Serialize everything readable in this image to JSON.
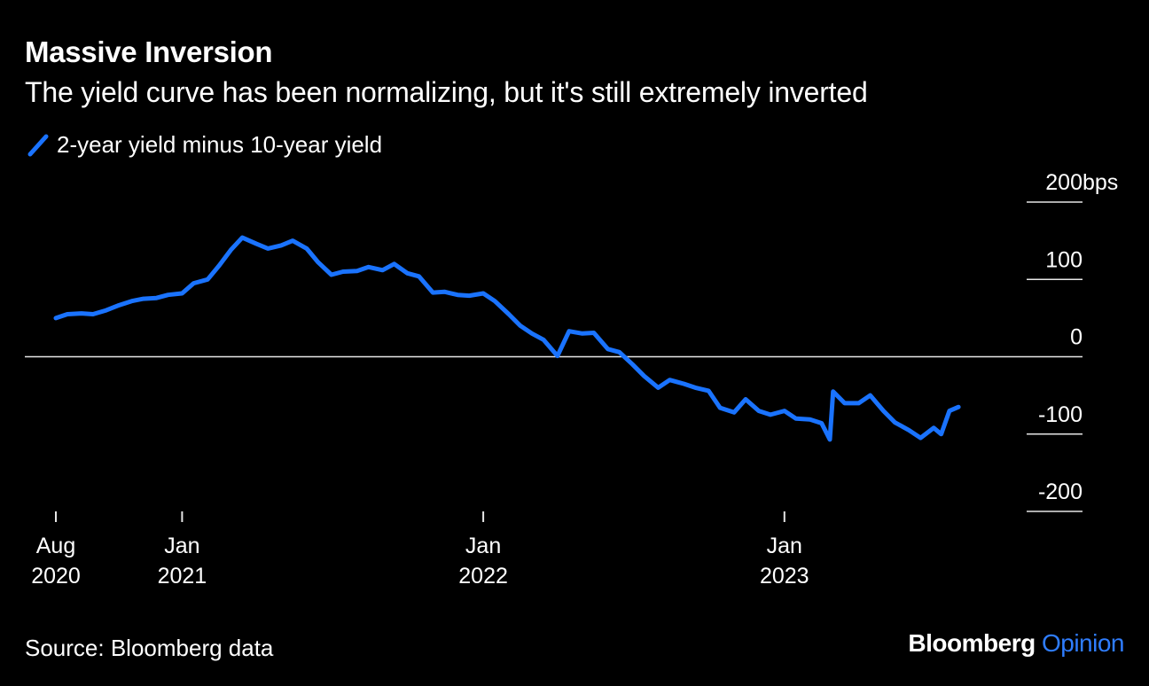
{
  "chart_data": {
    "type": "line",
    "title": "Massive Inversion",
    "subtitle": "The yield curve has been normalizing, but it's still extremely inverted",
    "source": "Source: Bloomberg data",
    "brand": {
      "name": "Bloomberg",
      "suffix": "Opinion"
    },
    "ylim": [
      -200,
      200
    ],
    "yticks": [
      {
        "value": 200,
        "label": "200",
        "unit": "bps"
      },
      {
        "value": 100,
        "label": "100"
      },
      {
        "value": 0,
        "label": "0"
      },
      {
        "value": -100,
        "label": "-100"
      },
      {
        "value": -200,
        "label": "-200"
      }
    ],
    "xlim": [
      "2020-08-01",
      "2023-08-31"
    ],
    "xticks": [
      {
        "date": "2020-08-01",
        "line1": "Aug",
        "line2": "2020"
      },
      {
        "date": "2021-01-01",
        "line1": "Jan",
        "line2": "2021"
      },
      {
        "date": "2022-01-01",
        "line1": "Jan",
        "line2": "2022"
      },
      {
        "date": "2023-01-01",
        "line1": "Jan",
        "line2": "2023"
      }
    ],
    "series": [
      {
        "name": "2-year yield minus 10-year yield",
        "color": "#1a73ff",
        "points": [
          [
            "2020-08-01",
            50
          ],
          [
            "2020-08-15",
            55
          ],
          [
            "2020-09-01",
            56
          ],
          [
            "2020-09-15",
            55
          ],
          [
            "2020-10-01",
            60
          ],
          [
            "2020-10-15",
            66
          ],
          [
            "2020-11-01",
            72
          ],
          [
            "2020-11-15",
            75
          ],
          [
            "2020-12-01",
            76
          ],
          [
            "2020-12-15",
            80
          ],
          [
            "2021-01-01",
            82
          ],
          [
            "2021-01-15",
            95
          ],
          [
            "2021-02-01",
            100
          ],
          [
            "2021-02-15",
            118
          ],
          [
            "2021-03-01",
            138
          ],
          [
            "2021-03-15",
            154
          ],
          [
            "2021-04-01",
            146
          ],
          [
            "2021-04-15",
            140
          ],
          [
            "2021-05-01",
            144
          ],
          [
            "2021-05-15",
            150
          ],
          [
            "2021-06-01",
            140
          ],
          [
            "2021-06-15",
            122
          ],
          [
            "2021-07-01",
            106
          ],
          [
            "2021-07-15",
            110
          ],
          [
            "2021-08-01",
            111
          ],
          [
            "2021-08-15",
            116
          ],
          [
            "2021-09-01",
            112
          ],
          [
            "2021-09-15",
            120
          ],
          [
            "2021-10-01",
            108
          ],
          [
            "2021-10-15",
            104
          ],
          [
            "2021-11-01",
            83
          ],
          [
            "2021-11-15",
            84
          ],
          [
            "2021-12-01",
            80
          ],
          [
            "2021-12-15",
            79
          ],
          [
            "2022-01-01",
            82
          ],
          [
            "2022-01-15",
            72
          ],
          [
            "2022-02-01",
            55
          ],
          [
            "2022-02-15",
            40
          ],
          [
            "2022-03-01",
            30
          ],
          [
            "2022-03-15",
            22
          ],
          [
            "2022-04-01",
            1
          ],
          [
            "2022-04-15",
            33
          ],
          [
            "2022-05-01",
            30
          ],
          [
            "2022-05-15",
            31
          ],
          [
            "2022-06-01",
            10
          ],
          [
            "2022-06-15",
            6
          ],
          [
            "2022-07-01",
            -10
          ],
          [
            "2022-07-15",
            -25
          ],
          [
            "2022-08-01",
            -40
          ],
          [
            "2022-08-15",
            -30
          ],
          [
            "2022-09-01",
            -35
          ],
          [
            "2022-09-15",
            -40
          ],
          [
            "2022-10-01",
            -44
          ],
          [
            "2022-10-15",
            -66
          ],
          [
            "2022-11-01",
            -72
          ],
          [
            "2022-11-15",
            -55
          ],
          [
            "2022-12-01",
            -70
          ],
          [
            "2022-12-15",
            -75
          ],
          [
            "2023-01-01",
            -70
          ],
          [
            "2023-01-15",
            -80
          ],
          [
            "2023-02-01",
            -81
          ],
          [
            "2023-02-15",
            -86
          ],
          [
            "2023-02-25",
            -107
          ],
          [
            "2023-03-01",
            -45
          ],
          [
            "2023-03-15",
            -60
          ],
          [
            "2023-04-01",
            -60
          ],
          [
            "2023-04-15",
            -50
          ],
          [
            "2023-05-01",
            -70
          ],
          [
            "2023-05-15",
            -85
          ],
          [
            "2023-06-01",
            -95
          ],
          [
            "2023-06-15",
            -105
          ],
          [
            "2023-07-01",
            -92
          ],
          [
            "2023-07-10",
            -100
          ],
          [
            "2023-07-20",
            -70
          ],
          [
            "2023-07-31",
            -65
          ]
        ]
      }
    ]
  }
}
